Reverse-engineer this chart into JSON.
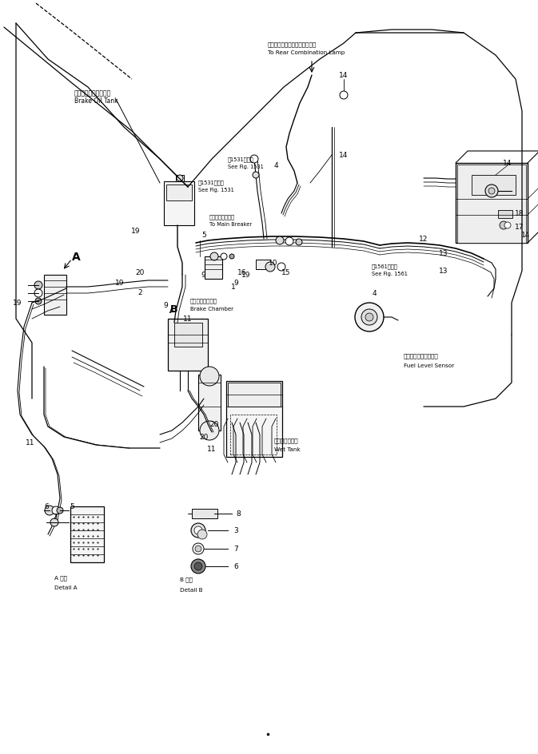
{
  "bg_color": "#ffffff",
  "lc": "#000000",
  "fig_width": 6.73,
  "fig_height": 9.45,
  "dpi": 100,
  "labels": {
    "top_jp": "リヤコンビネーションランプへ",
    "top_en": "To Rear Combination Lamp",
    "brake_oil_jp": "ブレーキオイルタンク",
    "brake_oil_en": "Brake Oil Tank",
    "fig1531a_jp": "第1531図参照",
    "fig1531a_en": "See Fig. 1531",
    "fig1531b_jp": "第1531図参照",
    "fig1531b_en": "See Fig. 1531",
    "main_breaker_jp": "メインブレーカへ",
    "main_breaker_en": "To Main Breaker",
    "fig1561_jp": "第1561図参照",
    "fig1561_en": "See Fig. 1561",
    "brake_chamber_jp": "ブレーキチャンバ",
    "brake_chamber_en": "Brake Chamber",
    "wet_tank_jp": "ウェットタンク",
    "wet_tank_en": "Wet Tank",
    "fuel_sensor_jp": "フェエルレベルセンサ",
    "fuel_sensor_en": "Fuel Level Sensor",
    "detail_a_jp": "A 詳細",
    "detail_a_en": "Detail A",
    "detail_b_jp": "B 詳細",
    "detail_b_en": "Detail B"
  }
}
